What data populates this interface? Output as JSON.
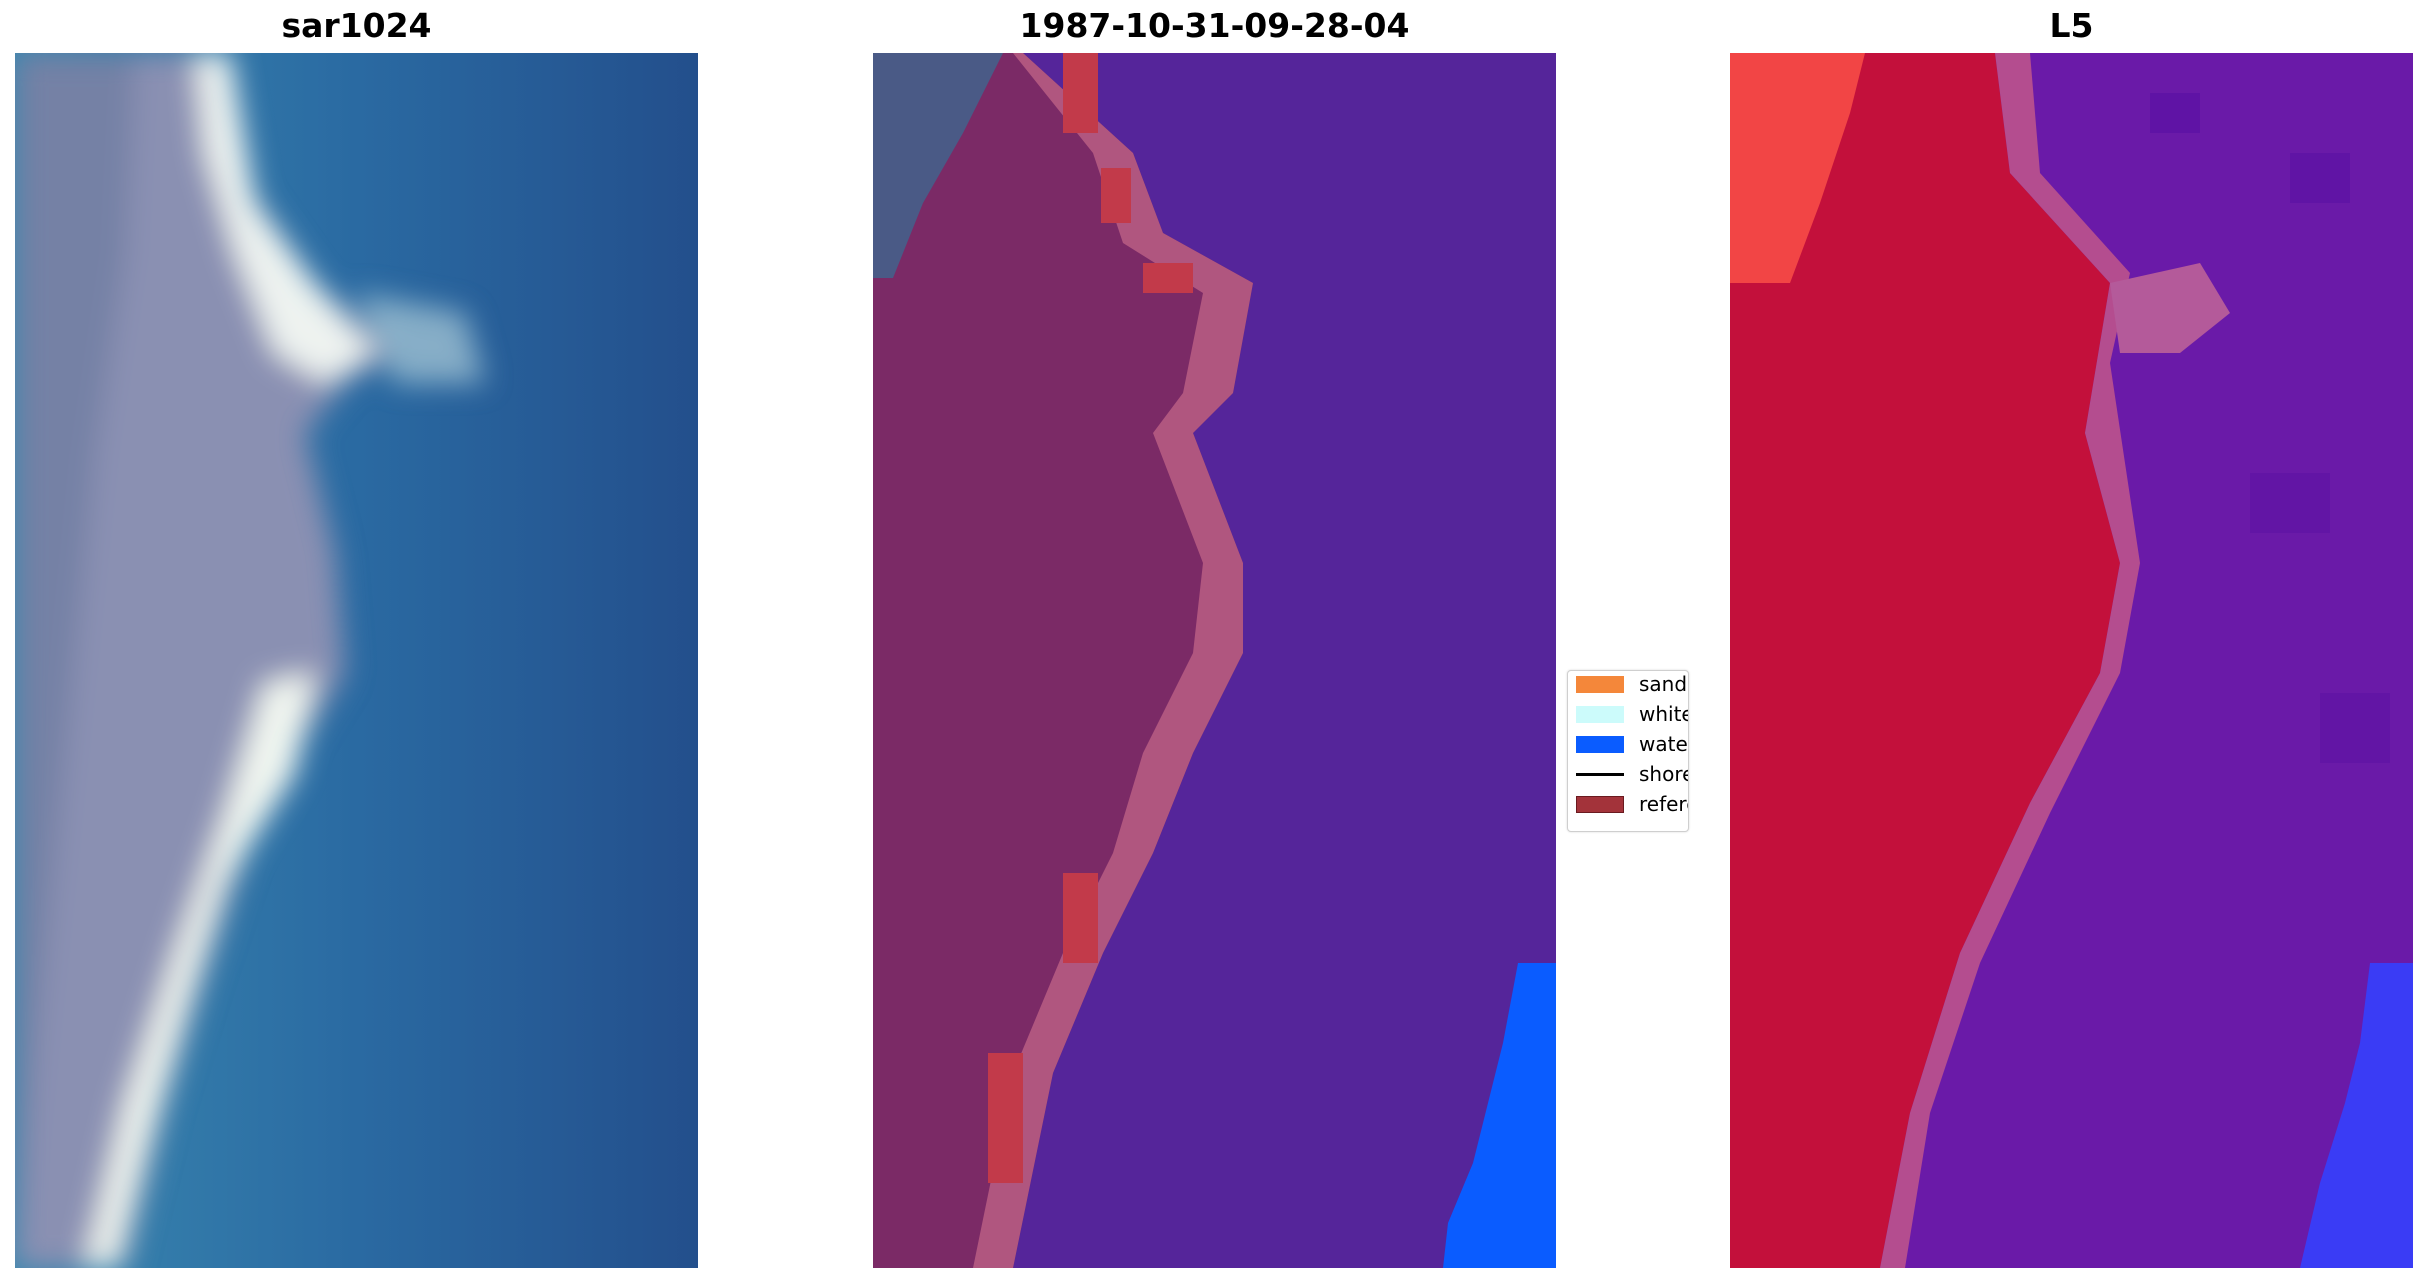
{
  "panels": [
    {
      "title": "sar1024"
    },
    {
      "title": "1987-10-31-09-28-04"
    },
    {
      "title": "L5"
    }
  ],
  "legend": {
    "items": [
      {
        "label": "sand",
        "color": "#f4873a",
        "kind": "patch"
      },
      {
        "label": "whitewat",
        "color": "#ccfbfb",
        "kind": "patch"
      },
      {
        "label": "water",
        "color": "#0a5cff",
        "kind": "patch"
      },
      {
        "label": "shoreline",
        "color": "#000000",
        "kind": "line"
      },
      {
        "label": "reference",
        "color": "#a3333a",
        "kind": "patch"
      }
    ]
  },
  "colors": {
    "rgb_sea": "#2a6aa2",
    "rgb_beach": "#8a90b2",
    "rgb_surf": "#f1f6f0",
    "class_water_overlay": "#55259a",
    "class_land_overlay": "#7b2a66",
    "class_blue": "#0a5cff",
    "index_land": "#c3103b",
    "index_water": "#6a1aa8"
  }
}
